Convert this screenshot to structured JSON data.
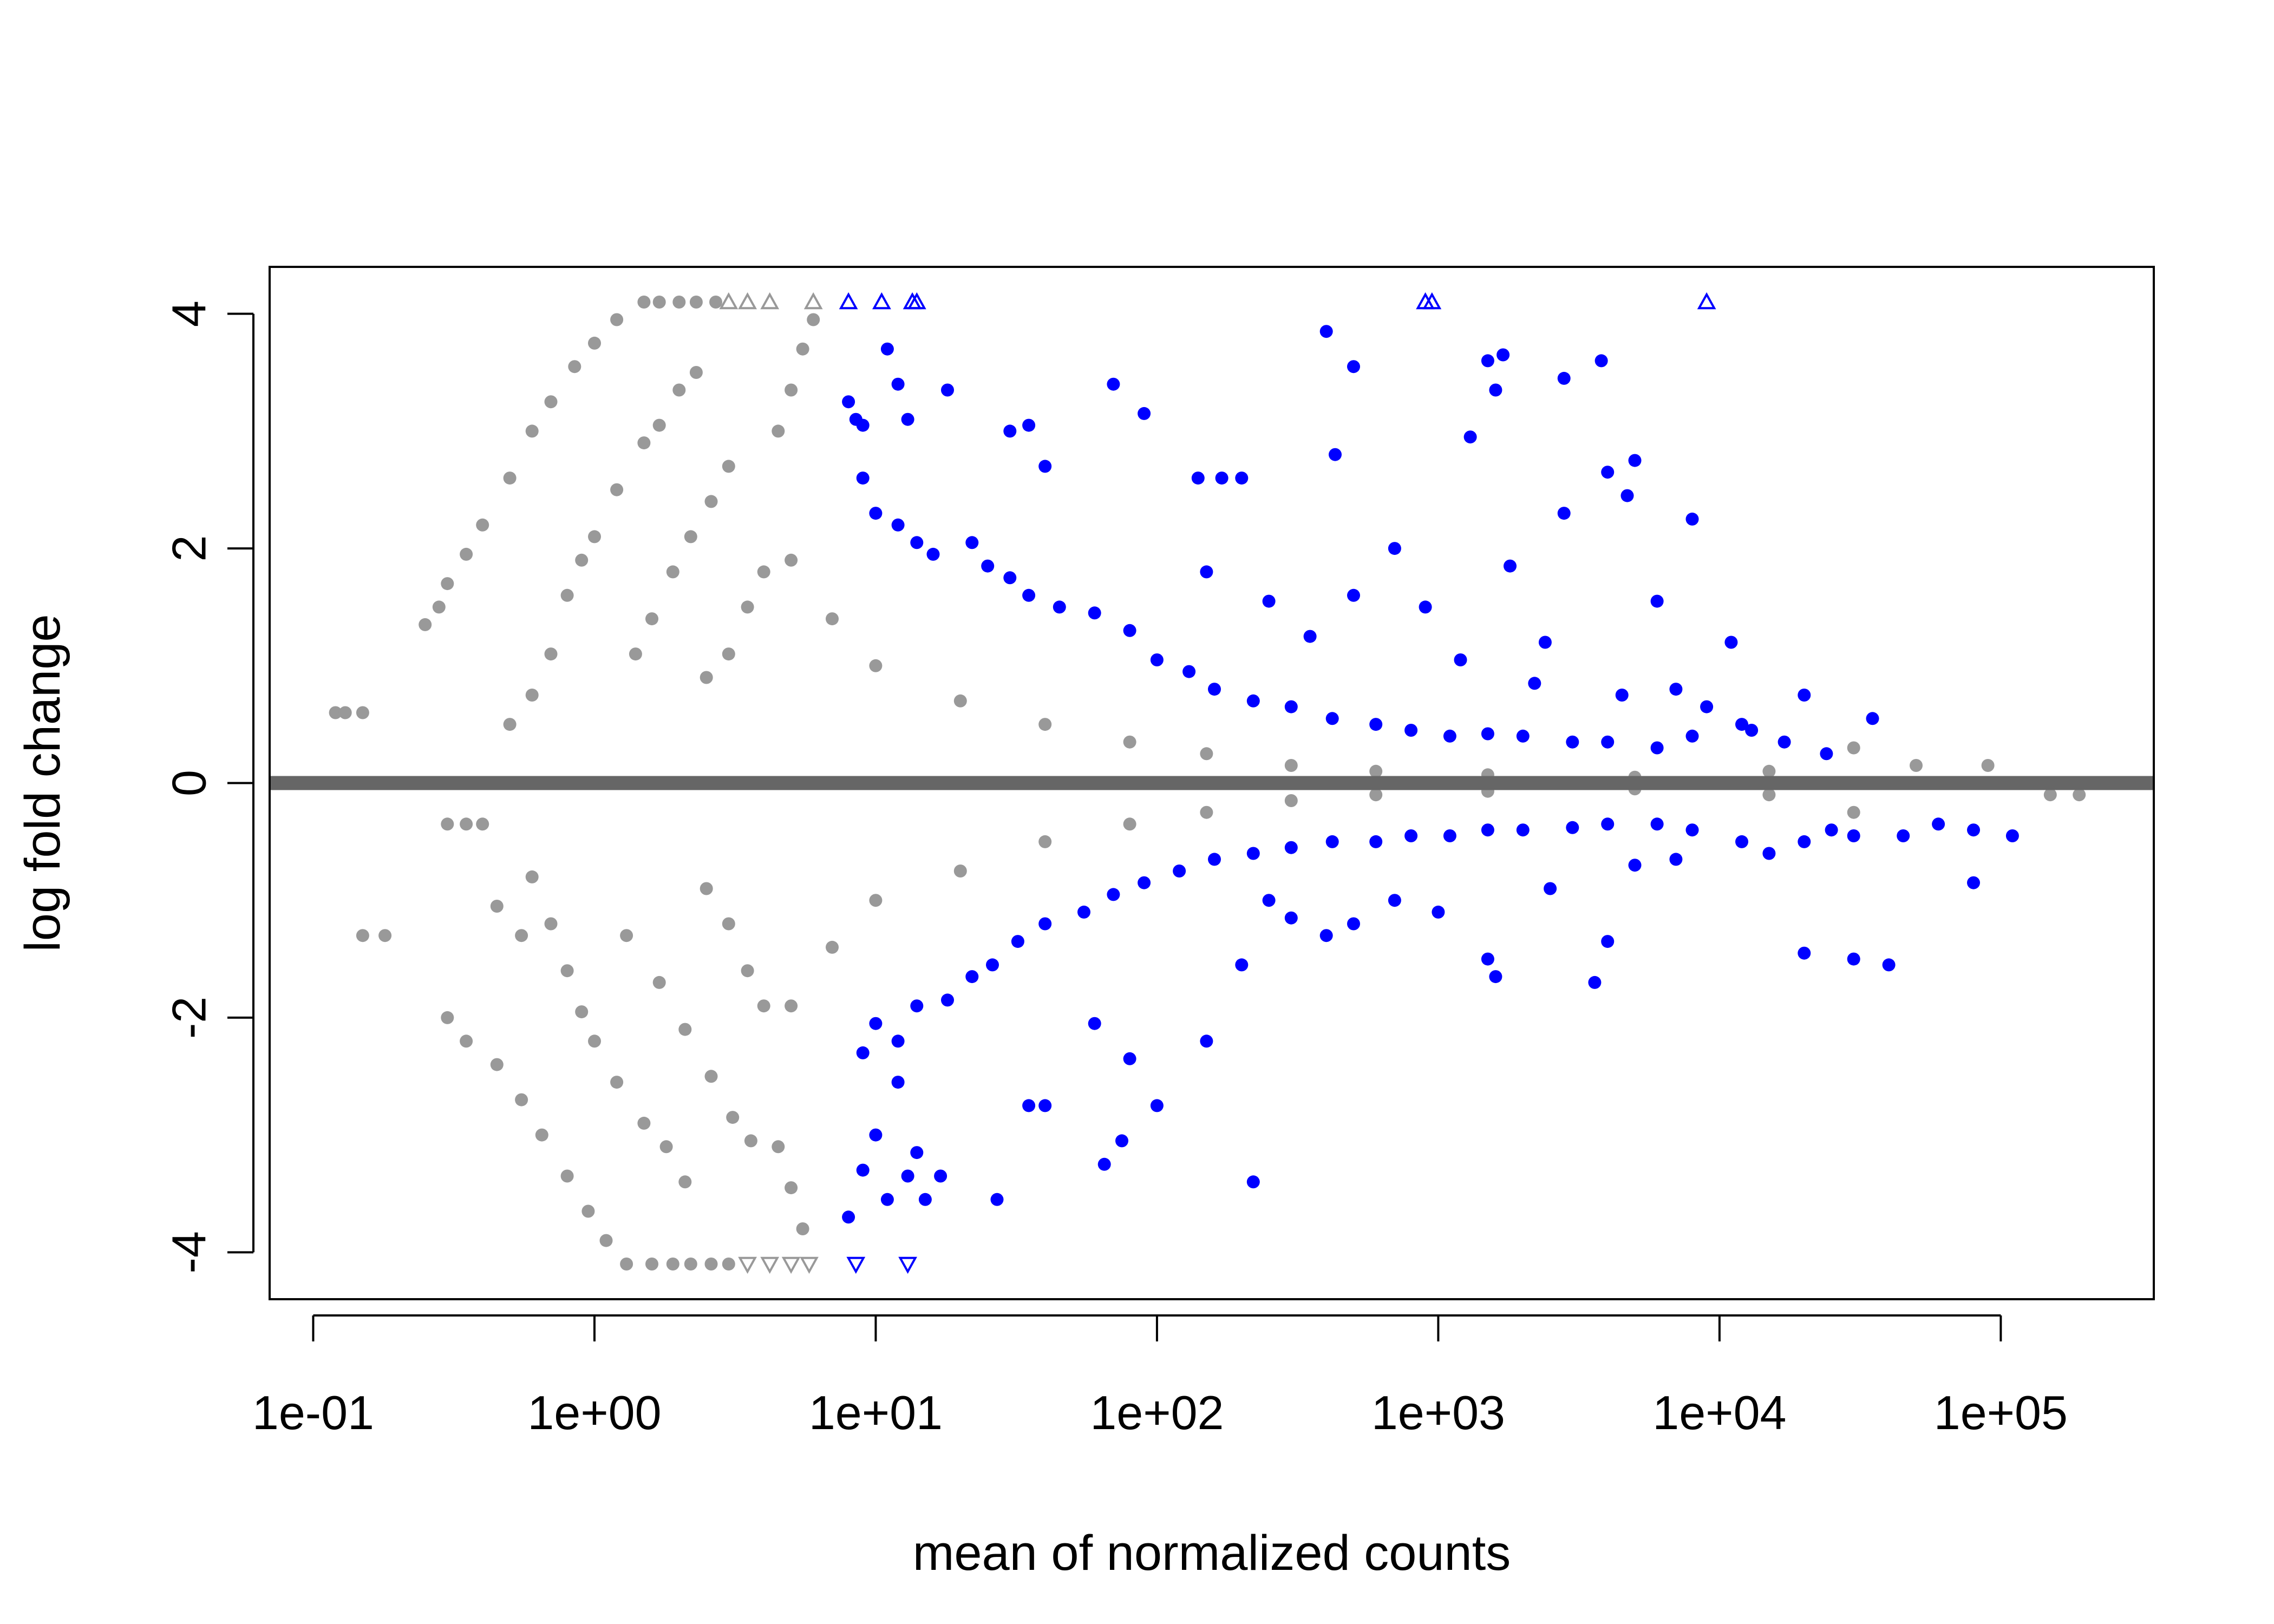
{
  "chart_data": {
    "type": "scatter",
    "title": "",
    "xlabel": "mean of normalized counts",
    "ylabel": "log fold change",
    "x_scale": "log10",
    "xlim": [
      0.07,
      350000
    ],
    "ylim": [
      -4.4,
      4.4
    ],
    "x_ticks": [
      {
        "value": 0.1,
        "label": "1e-01"
      },
      {
        "value": 1,
        "label": "1e+00"
      },
      {
        "value": 10,
        "label": "1e+01"
      },
      {
        "value": 100,
        "label": "1e+02"
      },
      {
        "value": 1000,
        "label": "1e+03"
      },
      {
        "value": 10000,
        "label": "1e+04"
      },
      {
        "value": 100000,
        "label": "1e+05"
      }
    ],
    "y_ticks": [
      {
        "value": 4,
        "label": "4"
      },
      {
        "value": 2,
        "label": "2"
      },
      {
        "value": 0,
        "label": "0"
      },
      {
        "value": -2,
        "label": "-2"
      },
      {
        "value": -4,
        "label": "-4"
      }
    ],
    "grid": false,
    "legend": "none",
    "reference_line": {
      "y": 0,
      "color": "#666666"
    },
    "colors": {
      "not_significant": "#999999",
      "significant": "#0000ff"
    },
    "series": [
      {
        "values": [
          [
            0.12,
            0.6
          ],
          [
            0.13,
            0.6
          ],
          [
            0.15,
            0.6
          ],
          [
            0.15,
            -1.3
          ],
          [
            0.18,
            -1.3
          ],
          [
            0.25,
            1.35
          ],
          [
            0.28,
            1.5
          ],
          [
            0.3,
            1.7
          ],
          [
            0.35,
            1.95
          ],
          [
            0.4,
            2.2
          ],
          [
            0.5,
            2.6
          ],
          [
            0.6,
            3.0
          ],
          [
            0.7,
            3.25
          ],
          [
            0.85,
            3.55
          ],
          [
            1.0,
            3.75
          ],
          [
            1.2,
            3.95
          ],
          [
            1.5,
            4.1
          ],
          [
            0.3,
            -0.35
          ],
          [
            0.35,
            -0.35
          ],
          [
            0.4,
            -0.35
          ],
          [
            0.3,
            -2.0
          ],
          [
            0.35,
            -2.2
          ],
          [
            0.45,
            -2.4
          ],
          [
            0.55,
            -2.7
          ],
          [
            0.65,
            -3.0
          ],
          [
            0.8,
            -3.35
          ],
          [
            0.95,
            -3.65
          ],
          [
            1.1,
            -3.9
          ],
          [
            1.3,
            -4.1
          ],
          [
            0.45,
            -1.05
          ],
          [
            0.55,
            -1.3
          ],
          [
            0.5,
            0.5
          ],
          [
            0.6,
            0.75
          ],
          [
            0.7,
            1.1
          ],
          [
            0.8,
            1.6
          ],
          [
            0.9,
            1.9
          ],
          [
            1.0,
            2.1
          ],
          [
            1.2,
            2.5
          ],
          [
            1.5,
            2.9
          ],
          [
            1.7,
            3.05
          ],
          [
            2.0,
            3.35
          ],
          [
            2.3,
            3.5
          ],
          [
            0.6,
            -0.8
          ],
          [
            0.7,
            -1.2
          ],
          [
            0.8,
            -1.6
          ],
          [
            0.9,
            -1.95
          ],
          [
            1.0,
            -2.2
          ],
          [
            1.2,
            -2.55
          ],
          [
            1.5,
            -2.9
          ],
          [
            1.8,
            -3.1
          ],
          [
            2.1,
            -3.4
          ],
          [
            1.4,
            1.1
          ],
          [
            1.6,
            1.4
          ],
          [
            1.9,
            1.8
          ],
          [
            2.2,
            2.1
          ],
          [
            2.6,
            2.4
          ],
          [
            3.0,
            2.7
          ],
          [
            1.3,
            -1.3
          ],
          [
            1.7,
            -1.7
          ],
          [
            2.1,
            -2.1
          ],
          [
            2.6,
            -2.5
          ],
          [
            3.1,
            -2.85
          ],
          [
            3.6,
            -3.05
          ],
          [
            4.5,
            3.0
          ],
          [
            5.0,
            3.35
          ],
          [
            5.5,
            3.7
          ],
          [
            6.0,
            3.95
          ],
          [
            4.5,
            -3.1
          ],
          [
            5.0,
            -3.45
          ],
          [
            5.5,
            -3.8
          ],
          [
            3.0,
            1.1
          ],
          [
            3.5,
            1.5
          ],
          [
            4.0,
            1.8
          ],
          [
            3.0,
            -1.2
          ],
          [
            3.5,
            -1.6
          ],
          [
            4.0,
            -1.9
          ],
          [
            1.7,
            4.1
          ],
          [
            2.0,
            4.1
          ],
          [
            2.3,
            4.1
          ],
          [
            2.7,
            4.1
          ],
          [
            1.6,
            -4.1
          ],
          [
            1.9,
            -4.1
          ],
          [
            2.2,
            -4.1
          ],
          [
            2.6,
            -4.1
          ],
          [
            3.0,
            -4.1
          ],
          [
            2.5,
            0.9
          ],
          [
            2.5,
            -0.9
          ],
          [
            5.0,
            1.9
          ],
          [
            5.0,
            -1.9
          ],
          [
            7.0,
            1.4
          ],
          [
            7.0,
            -1.4
          ],
          [
            10,
            1.0
          ],
          [
            10,
            -1.0
          ],
          [
            20,
            0.7
          ],
          [
            20,
            -0.75
          ],
          [
            40,
            0.5
          ],
          [
            40,
            -0.5
          ],
          [
            80,
            0.35
          ],
          [
            80,
            -0.35
          ],
          [
            150,
            0.25
          ],
          [
            150,
            -0.25
          ],
          [
            300,
            0.15
          ],
          [
            300,
            -0.15
          ],
          [
            600,
            0.1
          ],
          [
            600,
            -0.1
          ],
          [
            1500,
            0.07
          ],
          [
            1500,
            -0.07
          ],
          [
            5000,
            0.05
          ],
          [
            5000,
            -0.05
          ],
          [
            15000,
            0.1
          ],
          [
            15000,
            -0.1
          ],
          [
            30000,
            0.3
          ],
          [
            30000,
            -0.25
          ],
          [
            50000,
            0.15
          ],
          [
            90000,
            0.15
          ],
          [
            150000,
            -0.1
          ],
          [
            190000,
            -0.1
          ]
        ],
        "triangles_up": [
          [
            3.0,
            4.1
          ],
          [
            3.5,
            4.1
          ],
          [
            4.2,
            4.1
          ],
          [
            6.0,
            4.1
          ]
        ],
        "triangles_down": [
          [
            3.5,
            -4.1
          ],
          [
            4.2,
            -4.1
          ],
          [
            5.0,
            -4.1
          ],
          [
            5.8,
            -4.1
          ]
        ]
      },
      {
        "values": [
          [
            8,
            3.25
          ],
          [
            8.5,
            3.1
          ],
          [
            9,
            3.05
          ],
          [
            11,
            3.7
          ],
          [
            12,
            3.4
          ],
          [
            13,
            3.1
          ],
          [
            18,
            3.35
          ],
          [
            30,
            3.0
          ],
          [
            35,
            3.05
          ],
          [
            40,
            2.7
          ],
          [
            70,
            3.4
          ],
          [
            90,
            3.15
          ],
          [
            140,
            2.6
          ],
          [
            170,
            2.6
          ],
          [
            200,
            2.6
          ],
          [
            400,
            3.85
          ],
          [
            430,
            2.8
          ],
          [
            500,
            3.55
          ],
          [
            1500,
            3.6
          ],
          [
            1700,
            3.65
          ],
          [
            1600,
            3.35
          ],
          [
            2800,
            3.45
          ],
          [
            3800,
            3.6
          ],
          [
            1300,
            2.95
          ],
          [
            4000,
            2.65
          ],
          [
            5000,
            2.75
          ],
          [
            8000,
            2.25
          ],
          [
            4700,
            2.45
          ],
          [
            2800,
            2.3
          ],
          [
            9,
            2.6
          ],
          [
            10,
            2.3
          ],
          [
            12,
            2.2
          ],
          [
            14,
            2.05
          ],
          [
            16,
            1.95
          ],
          [
            22,
            2.05
          ],
          [
            25,
            1.85
          ],
          [
            30,
            1.75
          ],
          [
            35,
            1.6
          ],
          [
            45,
            1.5
          ],
          [
            60,
            1.45
          ],
          [
            80,
            1.3
          ],
          [
            100,
            1.05
          ],
          [
            130,
            0.95
          ],
          [
            160,
            0.8
          ],
          [
            220,
            0.7
          ],
          [
            300,
            0.65
          ],
          [
            420,
            0.55
          ],
          [
            600,
            0.5
          ],
          [
            800,
            0.45
          ],
          [
            1100,
            0.4
          ],
          [
            1500,
            0.42
          ],
          [
            2000,
            0.4
          ],
          [
            3000,
            0.35
          ],
          [
            4000,
            0.35
          ],
          [
            6000,
            0.3
          ],
          [
            8000,
            0.4
          ],
          [
            12000,
            0.5
          ],
          [
            20000,
            0.75
          ],
          [
            35000,
            0.55
          ],
          [
            500,
            1.6
          ],
          [
            700,
            2.0
          ],
          [
            900,
            1.5
          ],
          [
            1800,
            1.85
          ],
          [
            2400,
            1.2
          ],
          [
            6000,
            1.55
          ],
          [
            11000,
            1.2
          ],
          [
            7000,
            0.8
          ],
          [
            9000,
            0.65
          ],
          [
            13000,
            0.45
          ],
          [
            17000,
            0.35
          ],
          [
            24000,
            0.25
          ],
          [
            150,
            1.8
          ],
          [
            250,
            1.55
          ],
          [
            350,
            1.25
          ],
          [
            1200,
            1.05
          ],
          [
            2200,
            0.85
          ],
          [
            4500,
            0.75
          ],
          [
            8,
            -3.7
          ],
          [
            9,
            -3.3
          ],
          [
            10,
            -3.0
          ],
          [
            11,
            -3.55
          ],
          [
            12,
            -2.55
          ],
          [
            13,
            -3.35
          ],
          [
            14,
            -3.15
          ],
          [
            15,
            -3.55
          ],
          [
            17,
            -3.35
          ],
          [
            27,
            -3.55
          ],
          [
            35,
            -2.75
          ],
          [
            40,
            -2.75
          ],
          [
            65,
            -3.25
          ],
          [
            75,
            -3.05
          ],
          [
            220,
            -3.4
          ],
          [
            9,
            -2.3
          ],
          [
            10,
            -2.05
          ],
          [
            12,
            -2.2
          ],
          [
            14,
            -1.9
          ],
          [
            18,
            -1.85
          ],
          [
            22,
            -1.65
          ],
          [
            26,
            -1.55
          ],
          [
            32,
            -1.35
          ],
          [
            40,
            -1.2
          ],
          [
            55,
            -1.1
          ],
          [
            70,
            -0.95
          ],
          [
            90,
            -0.85
          ],
          [
            120,
            -0.75
          ],
          [
            160,
            -0.65
          ],
          [
            220,
            -0.6
          ],
          [
            300,
            -0.55
          ],
          [
            420,
            -0.5
          ],
          [
            600,
            -0.5
          ],
          [
            800,
            -0.45
          ],
          [
            1100,
            -0.45
          ],
          [
            1500,
            -0.4
          ],
          [
            2000,
            -0.4
          ],
          [
            3000,
            -0.38
          ],
          [
            4000,
            -0.35
          ],
          [
            6000,
            -0.35
          ],
          [
            8000,
            -0.4
          ],
          [
            12000,
            -0.5
          ],
          [
            20000,
            -0.5
          ],
          [
            30000,
            -0.45
          ],
          [
            45000,
            -0.45
          ],
          [
            60000,
            -0.35
          ],
          [
            80000,
            -0.4
          ],
          [
            110000,
            -0.45
          ],
          [
            80000,
            -0.85
          ],
          [
            20000,
            -1.45
          ],
          [
            30000,
            -1.5
          ],
          [
            40000,
            -1.55
          ],
          [
            3600,
            -1.7
          ],
          [
            1600,
            -1.65
          ],
          [
            1500,
            -1.5
          ],
          [
            4000,
            -1.35
          ],
          [
            400,
            -1.3
          ],
          [
            500,
            -1.2
          ],
          [
            300,
            -1.15
          ],
          [
            150,
            -2.2
          ],
          [
            100,
            -2.75
          ],
          [
            80,
            -2.35
          ],
          [
            60,
            -2.05
          ],
          [
            200,
            -1.55
          ],
          [
            250,
            -1.0
          ],
          [
            700,
            -1.0
          ],
          [
            1000,
            -1.1
          ],
          [
            2500,
            -0.9
          ],
          [
            5000,
            -0.7
          ],
          [
            7000,
            -0.65
          ],
          [
            15000,
            -0.6
          ],
          [
            25000,
            -0.4
          ]
        ],
        "triangles_up": [
          [
            8,
            4.1
          ],
          [
            10.5,
            4.1
          ],
          [
            13.5,
            4.1
          ],
          [
            14,
            4.1
          ],
          [
            900,
            4.1
          ],
          [
            950,
            4.1
          ],
          [
            9000,
            4.1
          ]
        ],
        "triangles_down": [
          [
            8.5,
            -4.1
          ],
          [
            13,
            -4.1
          ]
        ]
      }
    ]
  }
}
